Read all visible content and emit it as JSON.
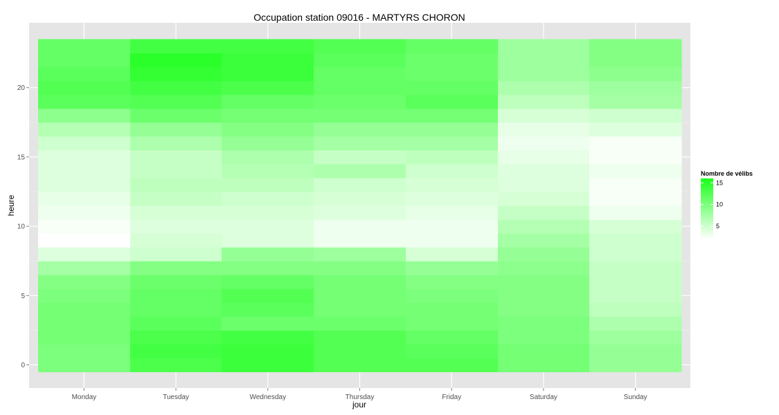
{
  "chart_data": {
    "type": "heatmap",
    "title": "Occupation station 09016 - MARTYRS CHORON",
    "xlabel": "jour",
    "ylabel": "heure",
    "x_categories": [
      "Monday",
      "Tuesday",
      "Wednesday",
      "Thursday",
      "Friday",
      "Saturday",
      "Sunday"
    ],
    "y_ticks": [
      0,
      5,
      10,
      15,
      20
    ],
    "y_ticks_labels": [
      "0",
      "5",
      "10",
      "15",
      "20"
    ],
    "ylim": [
      -0.5,
      23.5
    ],
    "grid": true,
    "legend": {
      "title": "Nombre de vélibs",
      "placement": "right",
      "breaks": [
        5,
        10,
        15
      ],
      "break_labels": [
        "5",
        "10",
        "15"
      ],
      "min": 2,
      "max": 16,
      "low_color": "#ffffff",
      "high_color": "#1aff1a"
    },
    "panel_background": "#e5e5e5",
    "grid_color": "#ffffff",
    "hours": [
      0,
      1,
      2,
      3,
      4,
      5,
      6,
      7,
      8,
      9,
      10,
      11,
      12,
      13,
      14,
      15,
      16,
      17,
      18,
      19,
      20,
      21,
      22,
      23
    ],
    "values_by_day": {
      "Monday": [
        10.0,
        10.0,
        10.5,
        10.5,
        10.5,
        10.0,
        9.5,
        7.5,
        4.0,
        2.0,
        2.5,
        3.0,
        3.5,
        4.0,
        4.0,
        4.0,
        5.0,
        6.5,
        9.0,
        12.0,
        12.5,
        12.0,
        11.5,
        11.5
      ],
      "Tuesday": [
        13.0,
        13.5,
        13.0,
        12.0,
        11.5,
        11.5,
        11.0,
        9.5,
        5.0,
        4.5,
        4.0,
        4.5,
        5.5,
        6.0,
        5.5,
        5.5,
        7.0,
        8.5,
        11.0,
        12.5,
        13.5,
        14.5,
        15.0,
        13.5
      ],
      "Wednesday": [
        14.0,
        14.0,
        13.5,
        11.0,
        12.0,
        12.5,
        11.5,
        9.5,
        8.5,
        4.0,
        4.0,
        4.5,
        5.0,
        6.0,
        6.5,
        7.0,
        8.5,
        9.5,
        10.5,
        11.5,
        13.0,
        14.0,
        14.0,
        13.5
      ],
      "Thursday": [
        12.5,
        12.5,
        12.5,
        11.0,
        10.5,
        10.5,
        10.5,
        9.5,
        8.0,
        3.0,
        3.0,
        4.0,
        4.5,
        5.0,
        7.0,
        5.5,
        7.5,
        8.5,
        10.5,
        11.0,
        11.5,
        11.5,
        12.0,
        12.5
      ],
      "Friday": [
        12.5,
        12.0,
        11.5,
        10.5,
        10.5,
        10.0,
        9.5,
        8.5,
        4.5,
        3.0,
        3.0,
        3.5,
        4.0,
        4.5,
        5.0,
        6.0,
        7.5,
        8.5,
        10.5,
        12.0,
        11.5,
        11.0,
        11.0,
        11.5
      ],
      "Saturday": [
        10.5,
        10.5,
        10.0,
        10.0,
        9.5,
        9.5,
        9.5,
        9.0,
        8.5,
        7.5,
        6.5,
        5.5,
        4.5,
        4.0,
        4.0,
        3.5,
        3.0,
        3.5,
        4.5,
        6.0,
        7.0,
        8.0,
        8.0,
        8.0
      ],
      "Sunday": [
        8.5,
        8.5,
        8.0,
        7.0,
        6.0,
        5.5,
        5.5,
        5.5,
        5.0,
        5.0,
        4.5,
        3.0,
        2.5,
        2.5,
        3.0,
        2.5,
        2.5,
        4.0,
        5.0,
        7.5,
        8.0,
        9.0,
        9.5,
        9.5
      ]
    }
  }
}
